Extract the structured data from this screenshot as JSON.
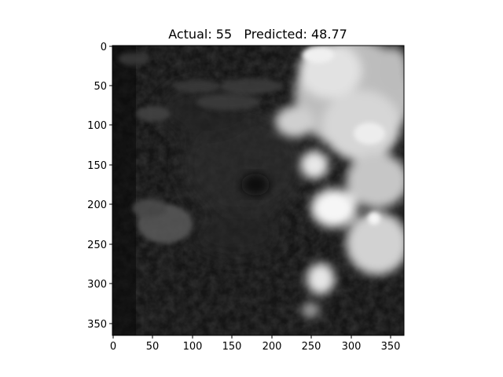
{
  "title": "Actual: 55   Predicted: 48.77",
  "image": {
    "description_icon": "satellite-infrared-image",
    "x_ticks": [
      "0",
      "50",
      "100",
      "150",
      "200",
      "250",
      "300",
      "350"
    ],
    "y_ticks": [
      "0",
      "50",
      "100",
      "150",
      "200",
      "250",
      "300",
      "350"
    ]
  }
}
